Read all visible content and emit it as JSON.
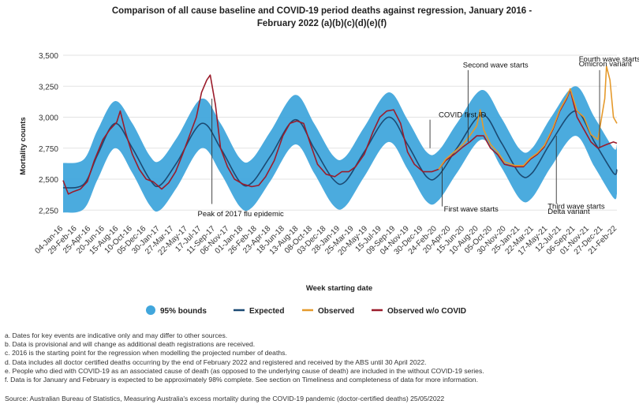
{
  "chart_data": {
    "type": "line",
    "title_line1": "Comparison of all cause baseline and COVID-19 period deaths against regression, January 2016 -",
    "title_line2": "February 2022 (a)(b)(c)(d)(e)(f)",
    "ylabel": "Mortality counts",
    "xlabel": "Week starting date",
    "ylim": [
      2150,
      3500
    ],
    "yticks": [
      "2,250",
      "2,500",
      "2,750",
      "3,000",
      "3,250",
      "3,500"
    ],
    "ytick_values": [
      2250,
      2500,
      2750,
      3000,
      3250,
      3500
    ],
    "x_start": "2016-01-04",
    "x_end": "2022-02-21",
    "xticks": [
      "04-Jan-16",
      "29-Feb-16",
      "25-Apr-16",
      "20-Jun-16",
      "15-Aug-16",
      "10-Oct-16",
      "05-Dec-16",
      "30-Jan-17",
      "27-Mar-17",
      "22-May-17",
      "17-Jul-17",
      "11-Sep-17",
      "06-Nov-17",
      "01-Jan-18",
      "26-Feb-18",
      "23-Apr-18",
      "18-Jun-18",
      "13-Aug-18",
      "08-Oct-18",
      "03-Dec-18",
      "28-Jan-19",
      "25-Mar-19",
      "20-May-19",
      "15-Jul-19",
      "09-Sep-19",
      "04-Nov-19",
      "30-Dec-19",
      "24-Feb-20",
      "20-Apr-20",
      "15-Jun-20",
      "10-Aug-20",
      "05-Oct-20",
      "30-Nov-20",
      "25-Jan-21",
      "22-Mar-21",
      "17-May-21",
      "12-Jul-21",
      "06-Sep-21",
      "01-Nov-21",
      "27-Dec-21",
      "21-Feb-22"
    ],
    "legend": [
      "95% bounds",
      "Expected",
      "Observed",
      "Observed w/o COVID"
    ],
    "colors": {
      "bounds": "#41a6dc",
      "expected": "#1b4a73",
      "observed": "#e59a2c",
      "observed_wo_covid": "#9b1c2b"
    },
    "series": [
      {
        "name": "Expected",
        "points": [
          [
            "2016-01-04",
            2430
          ],
          [
            "2016-03-28",
            2460
          ],
          [
            "2016-05-23",
            2700
          ],
          [
            "2016-08-01",
            2950
          ],
          [
            "2016-10-10",
            2750
          ],
          [
            "2016-12-19",
            2500
          ],
          [
            "2017-01-30",
            2450
          ],
          [
            "2017-04-10",
            2640
          ],
          [
            "2017-07-17",
            2950
          ],
          [
            "2017-10-02",
            2750
          ],
          [
            "2017-12-18",
            2480
          ],
          [
            "2018-02-05",
            2470
          ],
          [
            "2018-04-23",
            2690
          ],
          [
            "2018-07-30",
            2980
          ],
          [
            "2018-10-15",
            2750
          ],
          [
            "2018-12-31",
            2500
          ],
          [
            "2019-02-18",
            2480
          ],
          [
            "2019-05-06",
            2720
          ],
          [
            "2019-08-12",
            3000
          ],
          [
            "2019-10-28",
            2780
          ],
          [
            "2020-01-13",
            2520
          ],
          [
            "2020-03-02",
            2530
          ],
          [
            "2020-05-18",
            2760
          ],
          [
            "2020-08-24",
            3020
          ],
          [
            "2020-11-09",
            2800
          ],
          [
            "2021-01-25",
            2540
          ],
          [
            "2021-03-15",
            2550
          ],
          [
            "2021-05-31",
            2800
          ],
          [
            "2021-09-06",
            3050
          ],
          [
            "2021-11-22",
            2800
          ],
          [
            "2022-02-07",
            2550
          ],
          [
            "2022-02-21",
            2580
          ]
        ]
      },
      {
        "name": "95% bounds upper",
        "points": [
          [
            "2016-01-04",
            2630
          ],
          [
            "2016-03-28",
            2660
          ],
          [
            "2016-05-23",
            2900
          ],
          [
            "2016-08-01",
            3130
          ],
          [
            "2016-10-10",
            2950
          ],
          [
            "2016-12-19",
            2690
          ],
          [
            "2017-01-30",
            2650
          ],
          [
            "2017-04-10",
            2840
          ],
          [
            "2017-07-17",
            3150
          ],
          [
            "2017-10-02",
            2950
          ],
          [
            "2017-12-18",
            2670
          ],
          [
            "2018-02-05",
            2660
          ],
          [
            "2018-04-23",
            2890
          ],
          [
            "2018-07-30",
            3180
          ],
          [
            "2018-10-15",
            2950
          ],
          [
            "2018-12-31",
            2690
          ],
          [
            "2019-02-18",
            2680
          ],
          [
            "2019-05-06",
            2920
          ],
          [
            "2019-08-12",
            3200
          ],
          [
            "2019-10-28",
            2980
          ],
          [
            "2020-01-13",
            2720
          ],
          [
            "2020-03-02",
            2730
          ],
          [
            "2020-05-18",
            2960
          ],
          [
            "2020-08-24",
            3220
          ],
          [
            "2020-11-09",
            3000
          ],
          [
            "2021-01-25",
            2740
          ],
          [
            "2021-03-15",
            2750
          ],
          [
            "2021-05-31",
            3000
          ],
          [
            "2021-09-06",
            3250
          ],
          [
            "2021-11-22",
            3000
          ],
          [
            "2022-02-07",
            2750
          ],
          [
            "2022-02-21",
            2780
          ]
        ]
      },
      {
        "name": "95% bounds lower",
        "points": [
          [
            "2016-01-04",
            2230
          ],
          [
            "2016-03-28",
            2260
          ],
          [
            "2016-05-23",
            2500
          ],
          [
            "2016-08-01",
            2750
          ],
          [
            "2016-10-10",
            2550
          ],
          [
            "2016-12-19",
            2290
          ],
          [
            "2017-01-30",
            2250
          ],
          [
            "2017-04-10",
            2440
          ],
          [
            "2017-07-17",
            2750
          ],
          [
            "2017-10-02",
            2550
          ],
          [
            "2017-12-18",
            2280
          ],
          [
            "2018-02-05",
            2270
          ],
          [
            "2018-04-23",
            2490
          ],
          [
            "2018-07-30",
            2780
          ],
          [
            "2018-10-15",
            2550
          ],
          [
            "2018-12-31",
            2290
          ],
          [
            "2019-02-18",
            2280
          ],
          [
            "2019-05-06",
            2520
          ],
          [
            "2019-08-12",
            2800
          ],
          [
            "2019-10-28",
            2580
          ],
          [
            "2020-01-13",
            2320
          ],
          [
            "2020-03-02",
            2330
          ],
          [
            "2020-05-18",
            2560
          ],
          [
            "2020-08-24",
            2820
          ],
          [
            "2020-11-09",
            2600
          ],
          [
            "2021-01-25",
            2340
          ],
          [
            "2021-03-15",
            2350
          ],
          [
            "2021-05-31",
            2600
          ],
          [
            "2021-09-06",
            2850
          ],
          [
            "2021-11-22",
            2600
          ],
          [
            "2022-02-07",
            2350
          ],
          [
            "2022-02-21",
            2380
          ]
        ]
      },
      {
        "name": "Observed w/o COVID",
        "points": [
          [
            "2016-01-04",
            2490
          ],
          [
            "2016-01-25",
            2380
          ],
          [
            "2016-02-15",
            2400
          ],
          [
            "2016-03-14",
            2420
          ],
          [
            "2016-04-11",
            2480
          ],
          [
            "2016-05-09",
            2650
          ],
          [
            "2016-06-13",
            2820
          ],
          [
            "2016-07-11",
            2900
          ],
          [
            "2016-08-08",
            2960
          ],
          [
            "2016-08-22",
            3050
          ],
          [
            "2016-09-12",
            2880
          ],
          [
            "2016-10-10",
            2700
          ],
          [
            "2016-11-07",
            2580
          ],
          [
            "2016-12-05",
            2500
          ],
          [
            "2017-01-02",
            2480
          ],
          [
            "2017-02-06",
            2420
          ],
          [
            "2017-03-06",
            2470
          ],
          [
            "2017-04-03",
            2560
          ],
          [
            "2017-05-01",
            2700
          ],
          [
            "2017-05-29",
            2850
          ],
          [
            "2017-06-26",
            3000
          ],
          [
            "2017-07-17",
            3200
          ],
          [
            "2017-08-07",
            3300
          ],
          [
            "2017-08-21",
            3340
          ],
          [
            "2017-09-11",
            3100
          ],
          [
            "2017-10-02",
            2750
          ],
          [
            "2017-10-30",
            2600
          ],
          [
            "2017-11-27",
            2500
          ],
          [
            "2018-01-01",
            2460
          ],
          [
            "2018-02-05",
            2440
          ],
          [
            "2018-03-05",
            2450
          ],
          [
            "2018-04-02",
            2520
          ],
          [
            "2018-05-07",
            2650
          ],
          [
            "2018-06-11",
            2850
          ],
          [
            "2018-07-09",
            2950
          ],
          [
            "2018-08-06",
            2970
          ],
          [
            "2018-09-03",
            2950
          ],
          [
            "2018-10-01",
            2780
          ],
          [
            "2018-10-29",
            2620
          ],
          [
            "2018-12-03",
            2540
          ],
          [
            "2019-01-07",
            2520
          ],
          [
            "2019-02-04",
            2560
          ],
          [
            "2019-03-04",
            2560
          ],
          [
            "2019-04-01",
            2600
          ],
          [
            "2019-05-06",
            2700
          ],
          [
            "2019-06-10",
            2880
          ],
          [
            "2019-07-08",
            3000
          ],
          [
            "2019-08-05",
            3050
          ],
          [
            "2019-09-02",
            3060
          ],
          [
            "2019-09-30",
            2950
          ],
          [
            "2019-10-28",
            2720
          ],
          [
            "2019-11-25",
            2620
          ],
          [
            "2019-12-30",
            2560
          ],
          [
            "2020-02-03",
            2560
          ],
          [
            "2020-03-02",
            2580
          ],
          [
            "2020-03-30",
            2650
          ],
          [
            "2020-05-04",
            2700
          ],
          [
            "2020-06-08",
            2760
          ],
          [
            "2020-07-06",
            2800
          ],
          [
            "2020-08-03",
            2850
          ],
          [
            "2020-08-31",
            2850
          ],
          [
            "2020-09-28",
            2750
          ],
          [
            "2020-10-26",
            2700
          ],
          [
            "2020-11-23",
            2620
          ],
          [
            "2021-01-04",
            2600
          ],
          [
            "2021-02-08",
            2600
          ],
          [
            "2021-03-08",
            2660
          ],
          [
            "2021-04-05",
            2700
          ],
          [
            "2021-05-03",
            2760
          ],
          [
            "2021-06-07",
            2900
          ],
          [
            "2021-07-05",
            3050
          ],
          [
            "2021-08-02",
            3150
          ],
          [
            "2021-08-16",
            3220
          ],
          [
            "2021-09-13",
            3000
          ],
          [
            "2021-10-11",
            2900
          ],
          [
            "2021-11-08",
            2800
          ],
          [
            "2021-12-06",
            2750
          ],
          [
            "2022-01-10",
            2780
          ],
          [
            "2022-02-07",
            2800
          ],
          [
            "2022-02-21",
            2790
          ]
        ]
      },
      {
        "name": "Observed",
        "points": [
          [
            "2020-03-02",
            2580
          ],
          [
            "2020-03-30",
            2660
          ],
          [
            "2020-05-04",
            2720
          ],
          [
            "2020-06-08",
            2780
          ],
          [
            "2020-07-06",
            2850
          ],
          [
            "2020-08-03",
            2930
          ],
          [
            "2020-08-17",
            3060
          ],
          [
            "2020-08-31",
            2900
          ],
          [
            "2020-09-28",
            2780
          ],
          [
            "2020-10-26",
            2720
          ],
          [
            "2020-11-23",
            2640
          ],
          [
            "2021-01-04",
            2610
          ],
          [
            "2021-02-08",
            2610
          ],
          [
            "2021-03-08",
            2670
          ],
          [
            "2021-04-05",
            2710
          ],
          [
            "2021-05-03",
            2770
          ],
          [
            "2021-06-07",
            2910
          ],
          [
            "2021-07-05",
            3060
          ],
          [
            "2021-08-02",
            3160
          ],
          [
            "2021-08-16",
            3230
          ],
          [
            "2021-09-13",
            3050
          ],
          [
            "2021-10-11",
            3000
          ],
          [
            "2021-11-08",
            2860
          ],
          [
            "2021-12-06",
            2820
          ],
          [
            "2022-01-03",
            3150
          ],
          [
            "2022-01-10",
            3410
          ],
          [
            "2022-01-24",
            3300
          ],
          [
            "2022-02-07",
            3000
          ],
          [
            "2022-02-21",
            2950
          ]
        ]
      }
    ],
    "annotations": [
      {
        "text": "Peak of 2017 flu epidemic",
        "date": "2017-08-28",
        "text_date": "2017-07-01",
        "text_y": 2200,
        "line_from": 2300,
        "line_to": 3150
      },
      {
        "text": "COVID first ID",
        "date": "2020-01-27",
        "text_date": "2020-03-02",
        "text_y": 3000,
        "line_from": 2980,
        "line_to": 2750
      },
      {
        "text": "First wave starts",
        "date": "2020-03-16",
        "text_date": "2020-03-23",
        "text_y": 2240,
        "line_from": 2280,
        "line_to": 2600
      },
      {
        "text": "Second wave starts",
        "date": "2020-06-29",
        "text_date": "2020-06-08",
        "text_y": 3400,
        "line_from": 3380,
        "line_to": 2800
      },
      {
        "text": "Third wave starts",
        "date": "2021-06-21",
        "text_date": "2021-05-17",
        "text_y": 2260,
        "line_from": 2300,
        "line_to": 2850
      },
      {
        "text": "Delta variant",
        "date": "2021-06-21",
        "text_date": "2021-05-17",
        "text_y": 2220,
        "line_from": null,
        "line_to": null
      },
      {
        "text": "Fourth wave starts",
        "date": "2021-12-13",
        "text_date": "2021-09-20",
        "text_y": 3450,
        "line_from": 3380,
        "line_to": 2750
      },
      {
        "text": "Omicron variant",
        "date": "2021-12-13",
        "text_date": "2021-09-20",
        "text_y": 3410,
        "line_from": null,
        "line_to": null
      }
    ]
  },
  "notes": [
    "a. Dates for key events are indicative only and may differ to other sources.",
    "b. Data is provisional and will change as additional death registrations are received.",
    "c. 2016 is the starting point for the regression when modelling the projected number of deaths.",
    "d. Data includes all doctor certified deaths occurring by the end of February 2022 and registered and received by the ABS until 30 April 2022.",
    "e. People who died with COVID-19 as an associated cause of death (as opposed to the underlying cause of death) are included in the without COVID-19 series.",
    "f. Data is for January and February is expected to be approximately 98% complete. See section on Timeliness and completeness of data for more information."
  ],
  "source": "Source: Australian Bureau of Statistics, Measuring Australia's excess mortality during the COVID-19 pandemic (doctor-certified deaths) 25/05/2022"
}
